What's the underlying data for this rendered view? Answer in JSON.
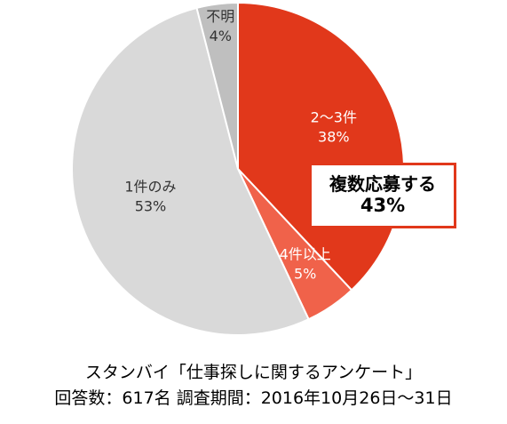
{
  "chart_data": {
    "type": "pie",
    "start_angle_deg": 0,
    "direction": "clockwise",
    "slices": [
      {
        "label": "2～3件",
        "value": 38,
        "value_text": "38%",
        "color": "#e1381b",
        "label_color": "#ffffff"
      },
      {
        "label": "4件以上",
        "value": 5,
        "value_text": "5%",
        "color": "#f0624a",
        "label_color": "#ffffff"
      },
      {
        "label": "1件のみ",
        "value": 53,
        "value_text": "53%",
        "color": "#d9d9d9",
        "label_color": "#333333"
      },
      {
        "label": "不明",
        "value": 4,
        "value_text": "4%",
        "color": "#bfbfbf",
        "label_color": "#333333"
      }
    ],
    "callout": {
      "label": "複数応募する",
      "value": "43%",
      "border_color": "#e1381b"
    }
  },
  "caption": {
    "line1": "スタンバイ「仕事探しに関するアンケート」",
    "line2": "回答数：617名 調査期間：2016年10月26日～31日"
  }
}
